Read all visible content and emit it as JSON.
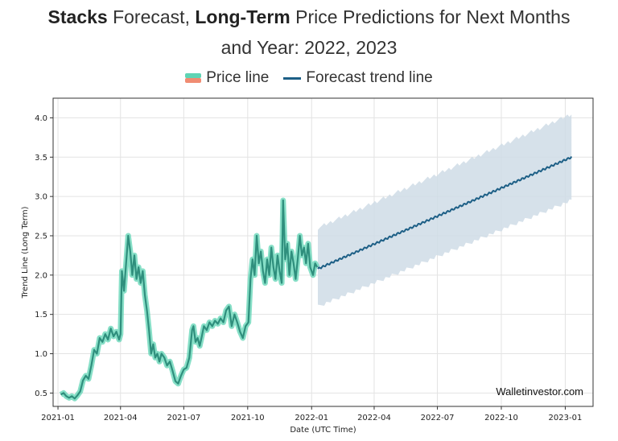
{
  "header": {
    "title_bold_1": "Stacks",
    "title_text_1": " Forecast, ",
    "title_bold_2": "Long-Term",
    "title_text_2": " Price Predictions for Next Months",
    "title_line_2": "and Year: 2022, 2023"
  },
  "legend": {
    "price_label": "Price line",
    "forecast_label": "Forecast trend line"
  },
  "watermark": "Walletinvestor.com",
  "chart_data": {
    "type": "line",
    "xlabel": "Date (UTC Time)",
    "ylabel": "Trend Line (Long Term)",
    "xlim": [
      "2020-12-25",
      "2023-02-10"
    ],
    "ylim": [
      0.33,
      4.25
    ],
    "grid": true,
    "x_ticks": [
      "2021-01",
      "2021-04",
      "2021-07",
      "2021-10",
      "2022-01",
      "2022-04",
      "2022-07",
      "2022-10",
      "2023-01"
    ],
    "y_ticks": [
      "0.5",
      "1.0",
      "1.5",
      "2.0",
      "2.5",
      "3.0",
      "3.5",
      "4.0"
    ],
    "colors": {
      "price_line": "#2f8f7d",
      "price_band": "#5fd4b4",
      "forecast_line": "#1d5f86",
      "forecast_band": "#cfdce6"
    },
    "series": [
      {
        "name": "Price line",
        "points": [
          [
            "2021-01-05",
            0.48
          ],
          [
            "2021-01-09",
            0.5
          ],
          [
            "2021-01-13",
            0.46
          ],
          [
            "2021-01-17",
            0.44
          ],
          [
            "2021-01-21",
            0.46
          ],
          [
            "2021-01-25",
            0.43
          ],
          [
            "2021-01-29",
            0.47
          ],
          [
            "2021-02-02",
            0.52
          ],
          [
            "2021-02-06",
            0.66
          ],
          [
            "2021-02-10",
            0.72
          ],
          [
            "2021-02-14",
            0.68
          ],
          [
            "2021-02-18",
            0.85
          ],
          [
            "2021-02-22",
            1.05
          ],
          [
            "2021-02-26",
            1.0
          ],
          [
            "2021-03-02",
            1.2
          ],
          [
            "2021-03-06",
            1.15
          ],
          [
            "2021-03-10",
            1.25
          ],
          [
            "2021-03-14",
            1.18
          ],
          [
            "2021-03-18",
            1.32
          ],
          [
            "2021-03-22",
            1.22
          ],
          [
            "2021-03-26",
            1.28
          ],
          [
            "2021-03-30",
            1.18
          ],
          [
            "2021-04-01",
            1.25
          ],
          [
            "2021-04-03",
            2.05
          ],
          [
            "2021-04-06",
            1.8
          ],
          [
            "2021-04-09",
            2.15
          ],
          [
            "2021-04-12",
            2.5
          ],
          [
            "2021-04-15",
            2.3
          ],
          [
            "2021-04-18",
            2.0
          ],
          [
            "2021-04-21",
            2.25
          ],
          [
            "2021-04-24",
            1.95
          ],
          [
            "2021-04-27",
            2.1
          ],
          [
            "2021-04-30",
            1.9
          ],
          [
            "2021-05-03",
            2.05
          ],
          [
            "2021-05-06",
            1.75
          ],
          [
            "2021-05-09",
            1.55
          ],
          [
            "2021-05-12",
            1.3
          ],
          [
            "2021-05-15",
            1.0
          ],
          [
            "2021-05-18",
            1.12
          ],
          [
            "2021-05-21",
            0.95
          ],
          [
            "2021-05-24",
            1.0
          ],
          [
            "2021-05-27",
            0.9
          ],
          [
            "2021-05-30",
            1.0
          ],
          [
            "2021-06-03",
            0.95
          ],
          [
            "2021-06-07",
            0.85
          ],
          [
            "2021-06-11",
            0.9
          ],
          [
            "2021-06-15",
            0.78
          ],
          [
            "2021-06-19",
            0.65
          ],
          [
            "2021-06-23",
            0.62
          ],
          [
            "2021-06-27",
            0.72
          ],
          [
            "2021-07-01",
            0.8
          ],
          [
            "2021-07-05",
            0.82
          ],
          [
            "2021-07-09",
            0.95
          ],
          [
            "2021-07-13",
            1.3
          ],
          [
            "2021-07-15",
            1.35
          ],
          [
            "2021-07-18",
            1.15
          ],
          [
            "2021-07-21",
            1.2
          ],
          [
            "2021-07-24",
            1.1
          ],
          [
            "2021-07-27",
            1.22
          ],
          [
            "2021-07-30",
            1.35
          ],
          [
            "2021-08-03",
            1.3
          ],
          [
            "2021-08-07",
            1.4
          ],
          [
            "2021-08-11",
            1.35
          ],
          [
            "2021-08-15",
            1.42
          ],
          [
            "2021-08-19",
            1.38
          ],
          [
            "2021-08-23",
            1.45
          ],
          [
            "2021-08-27",
            1.4
          ],
          [
            "2021-08-31",
            1.55
          ],
          [
            "2021-09-04",
            1.6
          ],
          [
            "2021-09-08",
            1.35
          ],
          [
            "2021-09-12",
            1.5
          ],
          [
            "2021-09-16",
            1.4
          ],
          [
            "2021-09-20",
            1.28
          ],
          [
            "2021-09-24",
            1.2
          ],
          [
            "2021-09-28",
            1.35
          ],
          [
            "2021-10-02",
            1.4
          ],
          [
            "2021-10-05",
            1.95
          ],
          [
            "2021-10-08",
            2.2
          ],
          [
            "2021-10-11",
            2.0
          ],
          [
            "2021-10-14",
            2.5
          ],
          [
            "2021-10-17",
            2.15
          ],
          [
            "2021-10-20",
            2.3
          ],
          [
            "2021-10-23",
            2.05
          ],
          [
            "2021-10-26",
            1.9
          ],
          [
            "2021-10-29",
            2.2
          ],
          [
            "2021-11-01",
            2.0
          ],
          [
            "2021-11-04",
            2.35
          ],
          [
            "2021-11-07",
            2.1
          ],
          [
            "2021-11-10",
            1.95
          ],
          [
            "2021-11-13",
            2.25
          ],
          [
            "2021-11-16",
            2.05
          ],
          [
            "2021-11-19",
            1.9
          ],
          [
            "2021-11-21",
            2.95
          ],
          [
            "2021-11-24",
            2.2
          ],
          [
            "2021-11-27",
            2.4
          ],
          [
            "2021-11-30",
            2.0
          ],
          [
            "2021-12-03",
            2.3
          ],
          [
            "2021-12-06",
            2.15
          ],
          [
            "2021-12-09",
            1.95
          ],
          [
            "2021-12-12",
            2.2
          ],
          [
            "2021-12-15",
            2.5
          ],
          [
            "2021-12-18",
            2.25
          ],
          [
            "2021-12-21",
            2.35
          ],
          [
            "2021-12-24",
            2.15
          ],
          [
            "2021-12-27",
            2.4
          ],
          [
            "2021-12-30",
            2.1
          ],
          [
            "2022-01-03",
            2.0
          ],
          [
            "2022-01-06",
            2.15
          ],
          [
            "2022-01-09",
            2.1
          ]
        ]
      },
      {
        "name": "Forecast trend line",
        "start": [
          "2022-01-10",
          2.08
        ],
        "end": [
          "2023-01-10",
          3.5
        ],
        "band_start": [
          1.6,
          2.6
        ],
        "band_end": [
          2.95,
          4.05
        ]
      }
    ]
  }
}
